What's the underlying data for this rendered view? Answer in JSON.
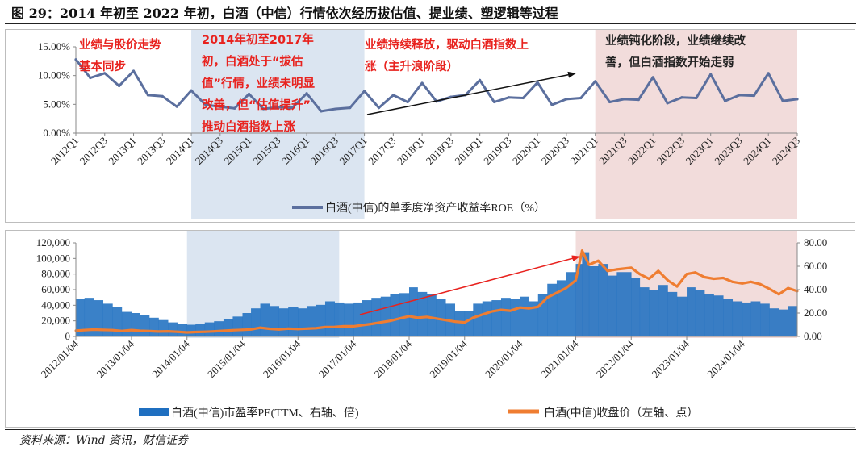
{
  "figure": {
    "title": "图 29：2014 年初至 2022 年初，白酒（中信）行情依次经历拔估值、提业绩、塑逻辑等过程",
    "source": "资料来源：Wind 资讯，财信证券"
  },
  "colors": {
    "roe_line": "#5b6f9e",
    "pe_bar": "#1f6fc0",
    "price_line": "#ef7d31",
    "shade_blue": "#dbe5f1",
    "shade_pink": "#f2dcdb",
    "annotation_red": "#e8221e",
    "annotation_arrow_red": "#e8221e"
  },
  "annotations": {
    "stage1": "业绩与股价走势\n基本同步",
    "stage2": "2014年初至2017年\n初，白酒处于“拔估\n值”行情，业绩未明显\n改善，但“估值提升”\n推动白酒指数上涨",
    "stage3": "业绩持续释放，驱动白酒指数上\n涨（主升浪阶段）",
    "stage4": "业绩钝化阶段，业绩继续改\n善，但白酒指数开始走弱"
  },
  "chart_data": [
    {
      "type": "line",
      "title": "",
      "categories": [
        "2012Q1",
        "2012Q2",
        "2012Q3",
        "2012Q4",
        "2013Q1",
        "2013Q2",
        "2013Q3",
        "2013Q4",
        "2014Q1",
        "2014Q2",
        "2014Q3",
        "2014Q4",
        "2015Q1",
        "2015Q2",
        "2015Q3",
        "2015Q4",
        "2016Q1",
        "2016Q2",
        "2016Q3",
        "2016Q4",
        "2017Q1",
        "2017Q2",
        "2017Q3",
        "2017Q4",
        "2018Q1",
        "2018Q2",
        "2018Q3",
        "2018Q4",
        "2019Q1",
        "2019Q2",
        "2019Q3",
        "2019Q4",
        "2020Q1",
        "2020Q2",
        "2020Q3",
        "2020Q4",
        "2021Q1",
        "2021Q2",
        "2021Q3",
        "2021Q4",
        "2022Q1",
        "2022Q2",
        "2022Q3",
        "2022Q4",
        "2023Q1",
        "2023Q2",
        "2023Q3",
        "2023Q4",
        "2024Q1",
        "2024Q2",
        "2024Q3"
      ],
      "tick_labels": [
        "2012Q1",
        "2012Q3",
        "2013Q1",
        "2013Q3",
        "2014Q1",
        "2014Q3",
        "2015Q1",
        "2015Q3",
        "2016Q1",
        "2016Q3",
        "2017Q1",
        "2017Q3",
        "2018Q1",
        "2018Q3",
        "2019Q1",
        "2019Q3",
        "2020Q1",
        "2020Q3",
        "2021Q1",
        "2021Q3",
        "2022Q1",
        "2022Q3",
        "2023Q1",
        "2023Q3",
        "2024Q1",
        "2024Q3"
      ],
      "series": [
        {
          "name": "白酒(中信)的单季度净资产收益率ROE（%）",
          "values": [
            12.8,
            9.6,
            10.4,
            8.2,
            10.8,
            6.6,
            6.4,
            4.6,
            7.4,
            4.9,
            4.6,
            4.3,
            6.8,
            4.2,
            4.5,
            4.4,
            6.9,
            3.8,
            4.2,
            4.4,
            7.3,
            4.4,
            6.6,
            5.4,
            8.7,
            5.5,
            6.3,
            6.6,
            9.2,
            5.4,
            6.2,
            6.1,
            8.8,
            4.9,
            5.9,
            6.1,
            9.0,
            5.4,
            5.9,
            5.8,
            9.7,
            5.2,
            6.2,
            6.1,
            10.2,
            5.6,
            6.6,
            6.5,
            10.4,
            5.6,
            5.9
          ]
        }
      ],
      "y_tick_labels": [
        "0.00%",
        "5.00%",
        "10.00%",
        "15.00%"
      ],
      "ylim": [
        0,
        15
      ],
      "legend": "bottom",
      "shaded_regions": [
        {
          "from": "2014Q1",
          "to": "2016Q4",
          "color": "blue"
        },
        {
          "from": "2021Q1",
          "to": "2024Q3",
          "color": "pink"
        }
      ]
    },
    {
      "type": "bar",
      "title": "",
      "x_range": [
        "2012/01/04",
        "2024/12/31"
      ],
      "tick_labels": [
        "2012/01/04",
        "2013/01/04",
        "2014/01/04",
        "2015/01/04",
        "2016/01/04",
        "2017/01/04",
        "2018/01/04",
        "2019/01/04",
        "2020/01/04",
        "2021/01/04",
        "2022/01/04",
        "2023/01/04",
        "2024/01/04"
      ],
      "series": [
        {
          "name": "白酒(中信)市盈率PE(TTM、右轴、倍)",
          "axis": "right",
          "kind": "bar",
          "points": [
            [
              "2012/01/04",
              32
            ],
            [
              "2012/03/01",
              33
            ],
            [
              "2012/05/01",
              31
            ],
            [
              "2012/07/01",
              28
            ],
            [
              "2012/09/01",
              25
            ],
            [
              "2012/11/01",
              21
            ],
            [
              "2013/01/04",
              20
            ],
            [
              "2013/03/01",
              18
            ],
            [
              "2013/05/01",
              16
            ],
            [
              "2013/07/01",
              14
            ],
            [
              "2013/09/01",
              12
            ],
            [
              "2013/11/01",
              11
            ],
            [
              "2014/01/04",
              10
            ],
            [
              "2014/03/01",
              11
            ],
            [
              "2014/05/01",
              12
            ],
            [
              "2014/07/01",
              13
            ],
            [
              "2014/09/01",
              15
            ],
            [
              "2014/11/01",
              17
            ],
            [
              "2015/01/04",
              20
            ],
            [
              "2015/03/01",
              24
            ],
            [
              "2015/05/01",
              28
            ],
            [
              "2015/07/01",
              26
            ],
            [
              "2015/09/01",
              24
            ],
            [
              "2015/11/01",
              25
            ],
            [
              "2016/01/04",
              24
            ],
            [
              "2016/03/01",
              26
            ],
            [
              "2016/05/01",
              27
            ],
            [
              "2016/07/01",
              30
            ],
            [
              "2016/09/01",
              29
            ],
            [
              "2016/11/01",
              28
            ],
            [
              "2017/01/04",
              29
            ],
            [
              "2017/03/01",
              31
            ],
            [
              "2017/05/01",
              33
            ],
            [
              "2017/07/01",
              34
            ],
            [
              "2017/09/01",
              36
            ],
            [
              "2017/11/01",
              37
            ],
            [
              "2018/01/04",
              42
            ],
            [
              "2018/03/01",
              38
            ],
            [
              "2018/05/01",
              36
            ],
            [
              "2018/07/01",
              32
            ],
            [
              "2018/09/01",
              28
            ],
            [
              "2018/11/01",
              22
            ],
            [
              "2019/01/04",
              22
            ],
            [
              "2019/03/01",
              28
            ],
            [
              "2019/05/01",
              30
            ],
            [
              "2019/07/01",
              31
            ],
            [
              "2019/09/01",
              33
            ],
            [
              "2019/11/01",
              32
            ],
            [
              "2020/01/04",
              34
            ],
            [
              "2020/03/01",
              30
            ],
            [
              "2020/05/01",
              36
            ],
            [
              "2020/07/01",
              45
            ],
            [
              "2020/09/01",
              48
            ],
            [
              "2020/11/01",
              55
            ],
            [
              "2021/01/04",
              62
            ],
            [
              "2021/02/15",
              72
            ],
            [
              "2021/04/01",
              60
            ],
            [
              "2021/06/01",
              62
            ],
            [
              "2021/08/01",
              52
            ],
            [
              "2021/10/01",
              55
            ],
            [
              "2022/01/04",
              50
            ],
            [
              "2022/03/01",
              42
            ],
            [
              "2022/05/01",
              40
            ],
            [
              "2022/07/01",
              44
            ],
            [
              "2022/09/01",
              38
            ],
            [
              "2022/11/01",
              34
            ],
            [
              "2023/01/04",
              42
            ],
            [
              "2023/03/01",
              40
            ],
            [
              "2023/05/01",
              36
            ],
            [
              "2023/07/01",
              35
            ],
            [
              "2023/09/01",
              32
            ],
            [
              "2023/11/01",
              30
            ],
            [
              "2024/01/04",
              29
            ],
            [
              "2024/03/01",
              30
            ],
            [
              "2024/05/01",
              28
            ],
            [
              "2024/07/01",
              24
            ],
            [
              "2024/09/01",
              23
            ],
            [
              "2024/11/01",
              26
            ],
            [
              "2024/12/31",
              24
            ]
          ]
        },
        {
          "name": "白酒(中信)收盘价（左轴、点）",
          "axis": "left",
          "kind": "line",
          "points": [
            [
              "2012/01/04",
              7500
            ],
            [
              "2012/03/01",
              8200
            ],
            [
              "2012/05/01",
              8800
            ],
            [
              "2012/07/01",
              8400
            ],
            [
              "2012/09/01",
              8100
            ],
            [
              "2012/11/01",
              7000
            ],
            [
              "2013/01/04",
              8200
            ],
            [
              "2013/03/01",
              7200
            ],
            [
              "2013/05/01",
              6800
            ],
            [
              "2013/07/01",
              6300
            ],
            [
              "2013/09/01",
              6600
            ],
            [
              "2013/11/01",
              6000
            ],
            [
              "2014/01/04",
              5200
            ],
            [
              "2014/03/01",
              5700
            ],
            [
              "2014/05/01",
              6000
            ],
            [
              "2014/07/01",
              6500
            ],
            [
              "2014/09/01",
              7200
            ],
            [
              "2014/11/01",
              8000
            ],
            [
              "2015/01/04",
              8500
            ],
            [
              "2015/03/01",
              9000
            ],
            [
              "2015/05/01",
              11200
            ],
            [
              "2015/07/01",
              9800
            ],
            [
              "2015/09/01",
              9000
            ],
            [
              "2015/11/01",
              10000
            ],
            [
              "2016/01/04",
              9500
            ],
            [
              "2016/03/01",
              10000
            ],
            [
              "2016/05/01",
              10500
            ],
            [
              "2016/07/01",
              12000
            ],
            [
              "2016/09/01",
              12200
            ],
            [
              "2016/11/01",
              13000
            ],
            [
              "2017/01/04",
              13000
            ],
            [
              "2017/03/01",
              14500
            ],
            [
              "2017/05/01",
              16000
            ],
            [
              "2017/07/01",
              18000
            ],
            [
              "2017/09/01",
              20000
            ],
            [
              "2017/11/01",
              23000
            ],
            [
              "2018/01/04",
              26000
            ],
            [
              "2018/03/01",
              24000
            ],
            [
              "2018/05/01",
              25000
            ],
            [
              "2018/07/01",
              23000
            ],
            [
              "2018/09/01",
              21000
            ],
            [
              "2018/11/01",
              19000
            ],
            [
              "2019/01/04",
              18000
            ],
            [
              "2019/03/01",
              24000
            ],
            [
              "2019/05/01",
              28000
            ],
            [
              "2019/07/01",
              32000
            ],
            [
              "2019/09/01",
              34000
            ],
            [
              "2019/11/01",
              33000
            ],
            [
              "2020/01/04",
              37000
            ],
            [
              "2020/03/01",
              36000
            ],
            [
              "2020/05/01",
              38000
            ],
            [
              "2020/07/01",
              50000
            ],
            [
              "2020/09/01",
              56000
            ],
            [
              "2020/11/01",
              62000
            ],
            [
              "2021/01/04",
              72000
            ],
            [
              "2021/02/15",
              110000
            ],
            [
              "2021/04/01",
              92000
            ],
            [
              "2021/06/01",
              97000
            ],
            [
              "2021/08/01",
              84000
            ],
            [
              "2021/10/01",
              86000
            ],
            [
              "2022/01/04",
              88000
            ],
            [
              "2022/03/01",
              80000
            ],
            [
              "2022/05/01",
              74000
            ],
            [
              "2022/07/01",
              84000
            ],
            [
              "2022/09/01",
              72000
            ],
            [
              "2022/11/01",
              64000
            ],
            [
              "2023/01/04",
              80000
            ],
            [
              "2023/03/01",
              82000
            ],
            [
              "2023/05/01",
              76000
            ],
            [
              "2023/07/01",
              74000
            ],
            [
              "2023/09/01",
              75000
            ],
            [
              "2023/11/01",
              70000
            ],
            [
              "2024/01/04",
              68000
            ],
            [
              "2024/03/01",
              70000
            ],
            [
              "2024/05/01",
              67000
            ],
            [
              "2024/07/01",
              61000
            ],
            [
              "2024/09/01",
              54000
            ],
            [
              "2024/11/01",
              62000
            ],
            [
              "2024/12/31",
              58000
            ]
          ]
        }
      ],
      "y_left_tick_labels": [
        "0",
        "20,000",
        "40,000",
        "60,000",
        "80,000",
        "100,000",
        "120,000"
      ],
      "y_left_lim": [
        0,
        120000
      ],
      "y_right_tick_labels": [
        "0.00",
        "20.00",
        "40.00",
        "60.00",
        "80.00"
      ],
      "y_right_lim": [
        0,
        80
      ],
      "legend": "bottom",
      "shaded_regions": [
        {
          "from": "2014/01/04",
          "to": "2016/10/01",
          "color": "blue"
        },
        {
          "from": "2021/01/04",
          "to": "2024/12/31",
          "color": "pink"
        }
      ]
    }
  ]
}
